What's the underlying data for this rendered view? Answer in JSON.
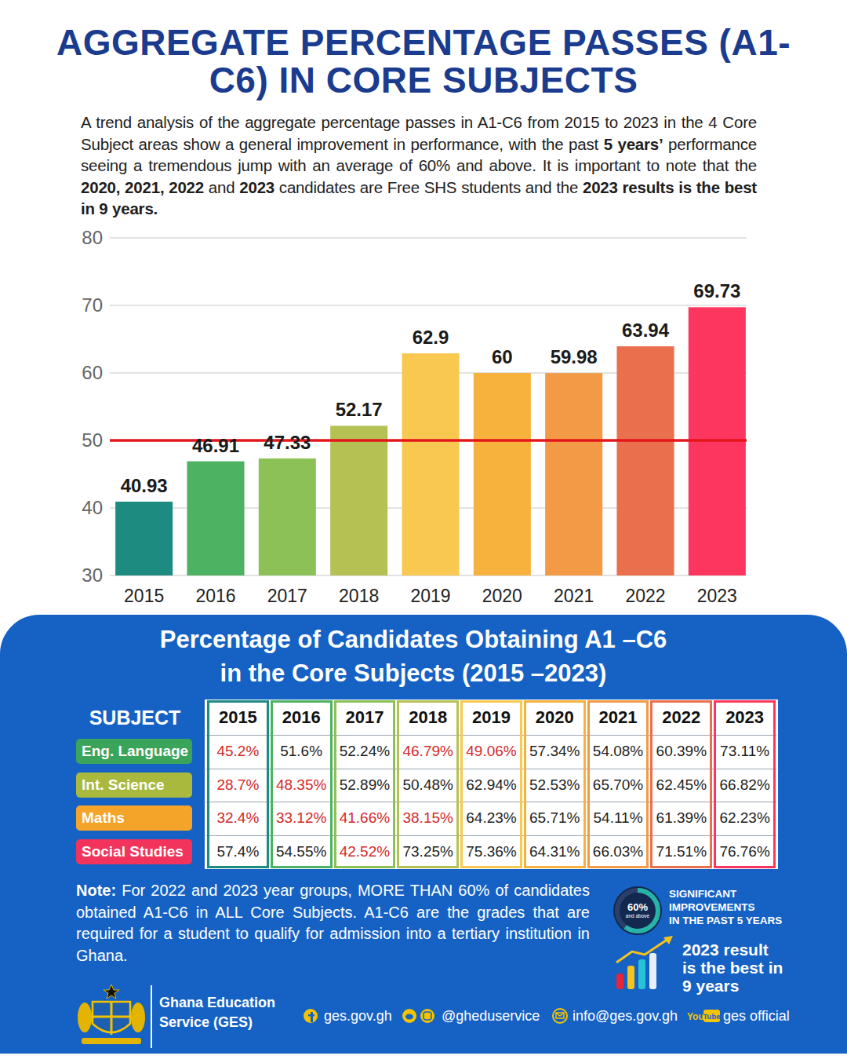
{
  "chart_data": {
    "type": "bar",
    "title": "AGGREGATE PERCENTAGE PASSES (A1-C6) IN CORE SUBJECTS",
    "categories": [
      "2015",
      "2016",
      "2017",
      "2018",
      "2019",
      "2020",
      "2021",
      "2022",
      "2023"
    ],
    "values": [
      40.93,
      46.91,
      47.33,
      52.17,
      62.9,
      60,
      59.98,
      63.94,
      69.73
    ],
    "colors": [
      "#1e8b80",
      "#4db262",
      "#8bc157",
      "#b6c154",
      "#f8c850",
      "#f6b23c",
      "#f29a45",
      "#ea6f4c",
      "#fd3660"
    ],
    "ylim": [
      30,
      80
    ],
    "yticks": [
      30,
      40,
      50,
      60,
      70,
      80
    ],
    "grid": true,
    "data_labels": true,
    "reference_line": {
      "value": 50,
      "color": "#e3161b"
    }
  },
  "intro": [
    {
      "text": "A trend analysis of the aggregate percentage passes in A1-C6 from 2015 to 2023 in the 4 Core Subject areas show a general improvement in performance, with the past ",
      "bold": false
    },
    {
      "text": "5 years’",
      "bold": true
    },
    {
      "text": " performance seeing a tremendous jump with an average of 60% and above. It is important to note that the ",
      "bold": false
    },
    {
      "text": "2020, 2021, 2022",
      "bold": true
    },
    {
      "text": " and ",
      "bold": false
    },
    {
      "text": "2023",
      "bold": true
    },
    {
      "text": " candidates are Free SHS students and the ",
      "bold": false
    },
    {
      "text": "2023 results is the best in 9 years.",
      "bold": true
    }
  ],
  "table": {
    "title": [
      "Percentage of Candidates Obtaining A1 –C6",
      "in the Core Subjects (2015 –2023)"
    ],
    "header": [
      "SUBJECT",
      "2015",
      "2016",
      "2017",
      "2018",
      "2019",
      "2020",
      "2021",
      "2022",
      "2023"
    ],
    "rows": [
      {
        "subject": "Eng. Language",
        "color": "#3aa45a",
        "cells": [
          {
            "value": 45.2,
            "label": "45.2%"
          },
          {
            "value": 51.6,
            "label": "51.6%"
          },
          {
            "value": 52.24,
            "label": "52.24%"
          },
          {
            "value": 46.79,
            "label": "46.79%"
          },
          {
            "value": 49.06,
            "label": "49.06%"
          },
          {
            "value": 57.34,
            "label": "57.34%"
          },
          {
            "value": 54.08,
            "label": "54.08%"
          },
          {
            "value": 60.39,
            "label": "60.39%"
          },
          {
            "value": 73.11,
            "label": "73.11%"
          }
        ]
      },
      {
        "subject": "Int. Science",
        "color": "#a8b93d",
        "cells": [
          {
            "value": 28.7,
            "label": "28.7%"
          },
          {
            "value": 48.35,
            "label": "48.35%"
          },
          {
            "value": 52.89,
            "label": "52.89%"
          },
          {
            "value": 50.48,
            "label": "50.48%"
          },
          {
            "value": 62.94,
            "label": "62.94%"
          },
          {
            "value": 52.53,
            "label": "52.53%"
          },
          {
            "value": 65.7,
            "label": "65.70%"
          },
          {
            "value": 62.45,
            "label": "62.45%"
          },
          {
            "value": 66.82,
            "label": "66.82%"
          }
        ]
      },
      {
        "subject": "Maths",
        "color": "#f5a42a",
        "cells": [
          {
            "value": 32.4,
            "label": "32.4%"
          },
          {
            "value": 33.12,
            "label": "33.12%"
          },
          {
            "value": 41.66,
            "label": "41.66%"
          },
          {
            "value": 38.15,
            "label": "38.15%"
          },
          {
            "value": 64.23,
            "label": "64.23%"
          },
          {
            "value": 65.71,
            "label": "65.71%"
          },
          {
            "value": 54.11,
            "label": "54.11%"
          },
          {
            "value": 61.39,
            "label": "61.39%"
          },
          {
            "value": 62.23,
            "label": "62.23%"
          }
        ]
      },
      {
        "subject": "Social Studies",
        "color": "#f2335c",
        "cells": [
          {
            "value": 57.4,
            "label": "57.4%"
          },
          {
            "value": 54.55,
            "label": "54.55%"
          },
          {
            "value": 42.52,
            "label": "42.52%"
          },
          {
            "value": 73.25,
            "label": "73.25%"
          },
          {
            "value": 75.36,
            "label": "75.36%"
          },
          {
            "value": 64.31,
            "label": "64.31%"
          },
          {
            "value": 66.03,
            "label": "66.03%"
          },
          {
            "value": 71.51,
            "label": "71.51%"
          },
          {
            "value": 76.76,
            "label": "76.76%"
          }
        ]
      }
    ]
  },
  "note": [
    {
      "text": "Note:",
      "bold": true
    },
    {
      "text": " For 2022 and 2023 year groups, MORE THAN 60% of candidates obtained A1-C6 in ALL Core Subjects. A1-C6 are the grades that are required for a student to qualify for admission into a tertiary institution in Ghana.",
      "bold": false
    }
  ],
  "badges": {
    "donut": [
      "60%",
      "and above"
    ],
    "improvement": [
      "SIGNIFICANT",
      "IMPROVEMENTS",
      "IN THE PAST 5 YEARS"
    ],
    "best": [
      "2023 result",
      "is the best in",
      "9 years"
    ]
  },
  "footer": {
    "organization": [
      "Ghana Education",
      "Service (GES)"
    ],
    "links": [
      "ges.gov.gh",
      "@gheduservice",
      "info@ges.gov.gh",
      "ges official"
    ],
    "youtube": [
      "You",
      "Tube"
    ]
  }
}
